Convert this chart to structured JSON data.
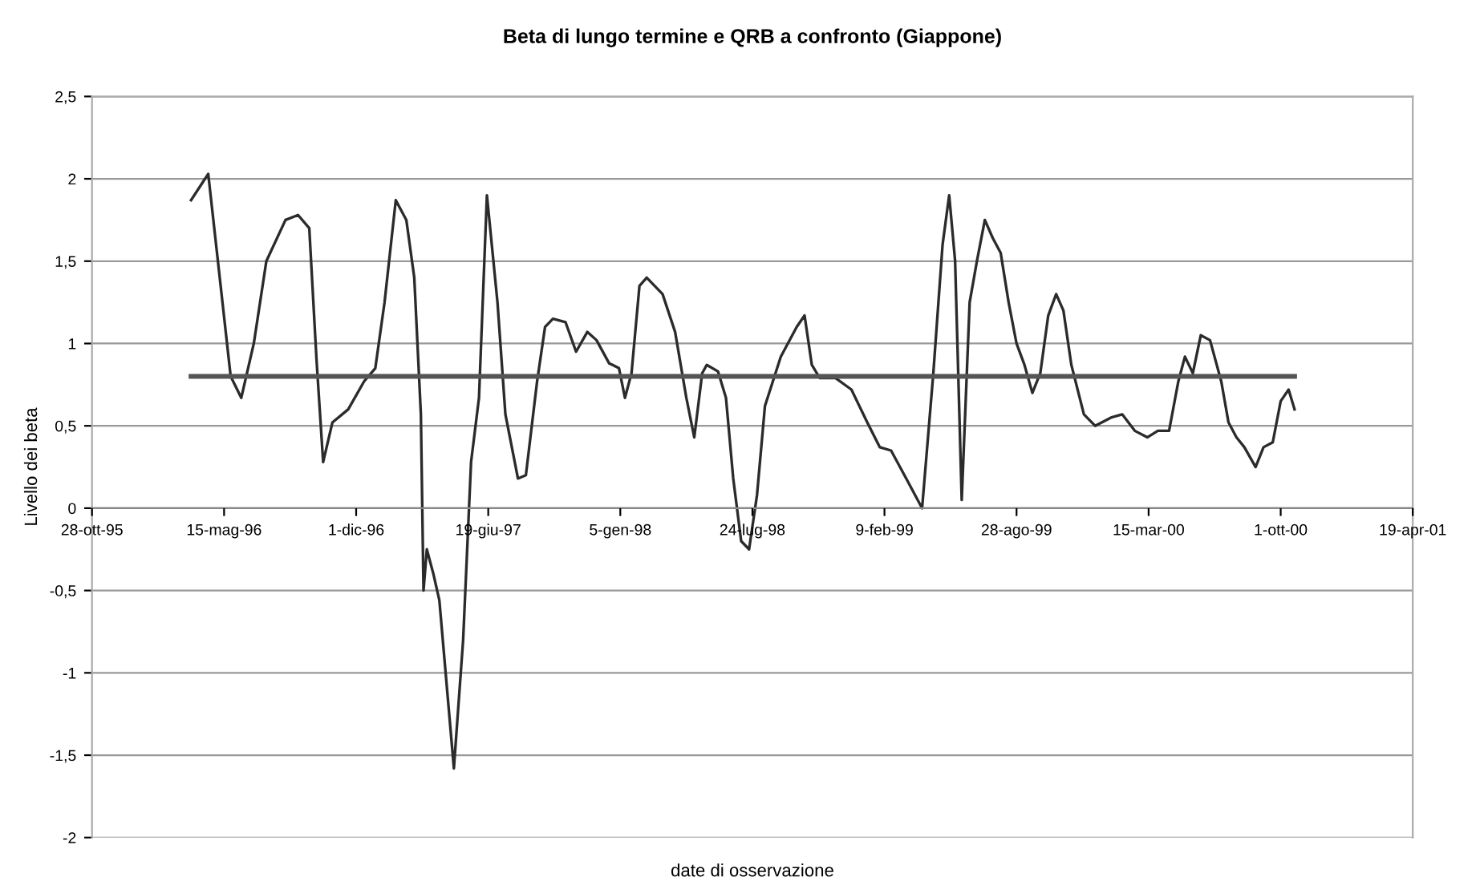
{
  "chart_data": {
    "type": "line",
    "title": "Beta di lungo termine e QRB a confronto (Giappone)",
    "xlabel": "date di osservazione",
    "ylabel": "Livello dei beta",
    "series": [
      {
        "color": "#2b2b2b",
        "x": [
          "1996-03-26",
          "1996-04-21",
          "1996-05-25",
          "1996-06-10",
          "1996-06-29",
          "1996-07-18",
          "1996-08-16",
          "1996-09-04",
          "1996-09-21",
          "1996-10-02",
          "1996-10-12",
          "1996-10-26",
          "1996-11-19",
          "1996-12-13",
          "1996-12-30",
          "1997-01-13",
          "1997-01-30",
          "1997-02-15",
          "1997-02-27",
          "1997-03-09",
          "1997-03-13",
          "1997-03-18",
          "1997-03-28",
          "1997-04-06",
          "1997-04-28",
          "1997-05-12",
          "1997-05-24",
          "1997-06-05",
          "1997-06-17",
          "1997-07-03",
          "1997-07-15",
          "1997-08-03",
          "1997-08-15",
          "1997-09-01",
          "1997-09-13",
          "1997-09-25",
          "1997-10-14",
          "1997-10-30",
          "1997-11-16",
          "1997-11-30",
          "1997-12-19",
          "1998-01-03",
          "1998-01-12",
          "1998-01-22",
          "1998-02-03",
          "1998-02-14",
          "1998-03-10",
          "1998-03-29",
          "1998-04-15",
          "1998-04-27",
          "1998-05-09",
          "1998-05-16",
          "1998-06-02",
          "1998-06-14",
          "1998-06-25",
          "1998-07-07",
          "1998-07-19",
          "1998-07-31",
          "1998-08-12",
          "1998-09-05",
          "1998-09-29",
          "1998-10-11",
          "1998-10-22",
          "1998-11-03",
          "1998-11-27",
          "1998-12-21",
          "1999-01-14",
          "1999-02-02",
          "1999-02-19",
          "1999-03-14",
          "1999-04-07",
          "1999-04-24",
          "1999-05-08",
          "1999-05-18",
          "1999-05-27",
          "1999-06-06",
          "1999-06-18",
          "1999-06-29",
          "1999-07-11",
          "1999-07-23",
          "1999-08-04",
          "1999-08-16",
          "1999-08-28",
          "1999-09-09",
          "1999-09-21",
          "1999-10-03",
          "1999-10-15",
          "1999-10-27",
          "1999-11-07",
          "1999-11-19",
          "1999-12-08",
          "1999-12-25",
          "2000-01-18",
          "2000-02-04",
          "2000-02-23",
          "2000-03-13",
          "2000-03-29",
          "2000-04-15",
          "2000-04-29",
          "2000-05-09",
          "2000-05-21",
          "2000-06-02",
          "2000-06-16",
          "2000-07-03",
          "2000-07-14",
          "2000-07-26",
          "2000-08-07",
          "2000-08-24",
          "2000-09-05",
          "2000-09-19",
          "2000-10-01",
          "2000-10-13",
          "2000-10-22"
        ],
        "values": [
          1.87,
          2.03,
          0.8,
          0.67,
          1.0,
          1.5,
          1.75,
          1.78,
          1.7,
          0.9,
          0.28,
          0.52,
          0.6,
          0.77,
          0.85,
          1.25,
          1.87,
          1.75,
          1.4,
          0.57,
          -0.5,
          -0.25,
          -0.4,
          -0.56,
          -1.58,
          -0.8,
          0.28,
          0.67,
          1.9,
          1.25,
          0.57,
          0.18,
          0.2,
          0.77,
          1.1,
          1.15,
          1.13,
          0.95,
          1.07,
          1.02,
          0.88,
          0.85,
          0.67,
          0.82,
          1.35,
          1.4,
          1.3,
          1.07,
          0.67,
          0.43,
          0.82,
          0.87,
          0.83,
          0.67,
          0.18,
          -0.2,
          -0.25,
          0.08,
          0.62,
          0.92,
          1.1,
          1.17,
          0.87,
          0.79,
          0.79,
          0.72,
          0.52,
          0.37,
          0.35,
          0.18,
          0.0,
          0.82,
          1.6,
          1.9,
          1.5,
          0.05,
          1.25,
          1.5,
          1.75,
          1.64,
          1.55,
          1.25,
          1.0,
          0.87,
          0.7,
          0.82,
          1.17,
          1.3,
          1.2,
          0.87,
          0.57,
          0.5,
          0.55,
          0.57,
          0.47,
          0.43,
          0.47,
          0.47,
          0.77,
          0.92,
          0.82,
          1.05,
          1.02,
          0.77,
          0.52,
          0.43,
          0.37,
          0.25,
          0.37,
          0.4,
          0.65,
          0.72,
          0.6
        ]
      },
      {
        "color": "#555555",
        "x": [
          "1996-03-26",
          "2000-10-22"
        ],
        "values": [
          0.8,
          0.8
        ]
      }
    ],
    "xlim": [
      "1995-10-28",
      "2001-04-19"
    ],
    "xticks": [
      {
        "value": "1995-10-28",
        "label": "28-ott-95"
      },
      {
        "value": "1996-05-15",
        "label": "15-mag-96"
      },
      {
        "value": "1996-12-01",
        "label": "1-dic-96"
      },
      {
        "value": "1997-06-19",
        "label": "19-giu-97"
      },
      {
        "value": "1998-01-05",
        "label": "5-gen-98"
      },
      {
        "value": "1998-07-24",
        "label": "24-lug-98"
      },
      {
        "value": "1999-02-09",
        "label": "9-feb-99"
      },
      {
        "value": "1999-08-28",
        "label": "28-ago-99"
      },
      {
        "value": "2000-03-15",
        "label": "15-mar-00"
      },
      {
        "value": "2000-10-01",
        "label": "1-ott-00"
      },
      {
        "value": "2001-04-19",
        "label": "19-apr-01"
      }
    ],
    "ylim": [
      -2,
      2.5
    ],
    "yticks": [
      {
        "value": -2,
        "label": "-2"
      },
      {
        "value": -1.5,
        "label": "-1,5"
      },
      {
        "value": -1,
        "label": "-1"
      },
      {
        "value": -0.5,
        "label": "-0,5"
      },
      {
        "value": 0,
        "label": "0"
      },
      {
        "value": 0.5,
        "label": "0,5"
      },
      {
        "value": 1,
        "label": "1"
      },
      {
        "value": 1.5,
        "label": "1,5"
      },
      {
        "value": 2,
        "label": "2"
      },
      {
        "value": 2.5,
        "label": "2,5"
      }
    ],
    "grid": "y",
    "marker": "none",
    "line_style": "solid"
  }
}
